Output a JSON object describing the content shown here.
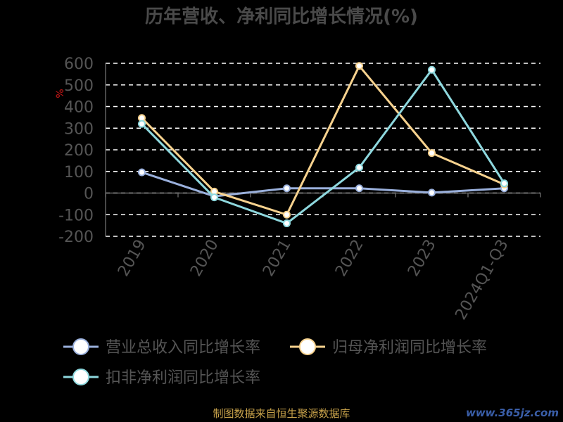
{
  "chart_data": {
    "type": "line",
    "title": "历年营收、净利同比增长情况(%)",
    "ylabel": "%",
    "xlabel": "",
    "categories": [
      "2019",
      "2020",
      "2021",
      "2022",
      "2023",
      "2024Q1-Q3"
    ],
    "y_ticks": [
      600,
      500,
      400,
      300,
      200,
      100,
      0,
      -100,
      -200
    ],
    "ylim": [
      -200,
      600
    ],
    "grid": true,
    "legend_position": "bottom",
    "series": [
      {
        "name": "营业总收入同比增长率",
        "color": "#9ab0dc",
        "values": [
          96,
          -15,
          22,
          22,
          2,
          22
        ]
      },
      {
        "name": "归母净利润同比增长率",
        "color": "#f7d28e",
        "values": [
          347,
          7,
          -100,
          588,
          185,
          40
        ]
      },
      {
        "name": "扣非净利润同比增长率",
        "color": "#8ed8de",
        "values": [
          320,
          -20,
          -140,
          118,
          570,
          45
        ]
      }
    ],
    "source": "制图数据来自恒生聚源数据库",
    "watermark": "www.365jz.com"
  }
}
